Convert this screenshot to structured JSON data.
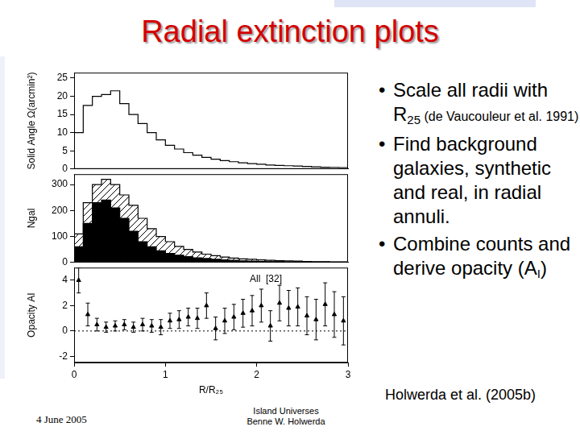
{
  "title": "Radial extinction plots",
  "bullets": [
    [
      {
        "text": "Scale all radii with R"
      },
      {
        "text": "25",
        "sub": true
      },
      {
        "text": " (de Vaucouleur et al. 1991)",
        "small": true
      }
    ],
    [
      {
        "text": "Find background galaxies, synthetic and real, in radial annuli."
      }
    ],
    [
      {
        "text": "Combine counts and derive opacity (A"
      },
      {
        "text": "I",
        "sub": true
      },
      {
        "text": ")"
      }
    ]
  ],
  "footer": {
    "date": "4 June 2005",
    "event": [
      "Island Universes",
      "Benne W. Holwerda"
    ],
    "reference": "Holwerda et al. (2005b)"
  },
  "chart_data": [
    {
      "type": "histogram",
      "ylabel": "Solid Angle Ω(arcmin²)",
      "bins": [
        0,
        0.1,
        0.2,
        0.3,
        0.4,
        0.5,
        0.6,
        0.7,
        0.8,
        0.9,
        1.0,
        1.1,
        1.2,
        1.3,
        1.4,
        1.5,
        1.6,
        1.7,
        1.8,
        1.9,
        2.0,
        2.1,
        2.2,
        2.3,
        2.4,
        2.5,
        2.6,
        2.7,
        2.8,
        2.9,
        3.0
      ],
      "values": [
        10,
        17.5,
        20,
        20.5,
        21.5,
        18,
        15,
        12.5,
        10,
        8,
        6.5,
        5.5,
        4.5,
        3.8,
        3.2,
        2.7,
        2.3,
        2,
        1.7,
        1.5,
        1.3,
        1.1,
        1,
        0.9,
        0.8,
        0.7,
        0.6,
        0.5,
        0.45,
        0.4
      ],
      "color": "#000000",
      "xlim": [
        0,
        3
      ],
      "xticks": [
        0,
        1,
        2,
        3
      ],
      "ylim": [
        0,
        26.5
      ],
      "yticks": [
        0,
        5,
        10,
        15,
        20,
        25
      ],
      "grid": false,
      "tick_labels": "y"
    },
    {
      "type": "histogram",
      "ylabel": "Ngal",
      "bins": [
        0,
        0.1,
        0.2,
        0.3,
        0.4,
        0.5,
        0.6,
        0.7,
        0.8,
        0.9,
        1.0,
        1.1,
        1.2,
        1.3,
        1.4,
        1.5,
        1.6,
        1.7,
        1.8,
        1.9,
        2.0,
        2.1,
        2.2,
        2.3,
        2.4,
        2.5,
        2.6,
        2.7,
        2.8,
        2.9,
        3.0
      ],
      "series": [
        {
          "color": "#000000",
          "marker": "hatch",
          "values": [
            110,
            230,
            300,
            320,
            300,
            260,
            220,
            170,
            130,
            100,
            80,
            62,
            50,
            40,
            32,
            26,
            21,
            17,
            14,
            12,
            10,
            8,
            7,
            6,
            5,
            4,
            3,
            3,
            2,
            2
          ]
        },
        {
          "color": "#000000",
          "marker": "solid",
          "values": [
            60,
            150,
            230,
            240,
            210,
            170,
            120,
            80,
            60,
            45,
            35,
            28,
            22,
            18,
            15,
            12,
            10,
            8,
            6,
            5,
            4,
            3,
            3,
            2,
            2,
            1,
            1,
            1,
            0,
            0
          ]
        }
      ],
      "xlim": [
        0,
        3
      ],
      "xticks": [
        0,
        1,
        2,
        3
      ],
      "ylim": [
        0,
        340
      ],
      "yticks": [
        0,
        100,
        200,
        300
      ],
      "grid": false,
      "tick_labels": "y"
    },
    {
      "type": "scatter",
      "xlabel": "R/R₂₅",
      "ylabel": "Opacity AI",
      "x": [
        0.05,
        0.15,
        0.25,
        0.35,
        0.45,
        0.55,
        0.65,
        0.75,
        0.85,
        0.95,
        1.05,
        1.15,
        1.25,
        1.35,
        1.45,
        1.55,
        1.65,
        1.75,
        1.85,
        1.95,
        2.05,
        2.15,
        2.25,
        2.35,
        2.45,
        2.55,
        2.65,
        2.75,
        2.85,
        2.95
      ],
      "values": [
        4.0,
        1.3,
        0.5,
        0.3,
        0.4,
        0.5,
        0.3,
        0.5,
        0.4,
        0.3,
        0.8,
        0.9,
        1.1,
        1.0,
        2.0,
        0.2,
        0.8,
        1.1,
        1.4,
        1.6,
        2.0,
        0.4,
        2.2,
        1.8,
        1.9,
        1.2,
        0.9,
        2.1,
        1.3,
        0.8
      ],
      "errors": [
        1.0,
        0.9,
        0.5,
        0.4,
        0.4,
        0.4,
        0.4,
        0.5,
        0.5,
        0.6,
        0.6,
        0.7,
        0.7,
        0.8,
        1.0,
        0.9,
        1.0,
        1.0,
        1.1,
        1.2,
        1.3,
        1.2,
        1.4,
        1.4,
        1.5,
        1.5,
        1.6,
        1.7,
        1.8,
        1.9
      ],
      "color": "#000000",
      "marker": "triangle",
      "annotations": [
        "All  [32]"
      ],
      "reference_y": 0,
      "xlim": [
        0,
        3
      ],
      "xticks": [
        0,
        1,
        2,
        3
      ],
      "ylim": [
        -2.5,
        5
      ],
      "yticks": [
        -2,
        0,
        2,
        4
      ],
      "grid": false
    }
  ]
}
